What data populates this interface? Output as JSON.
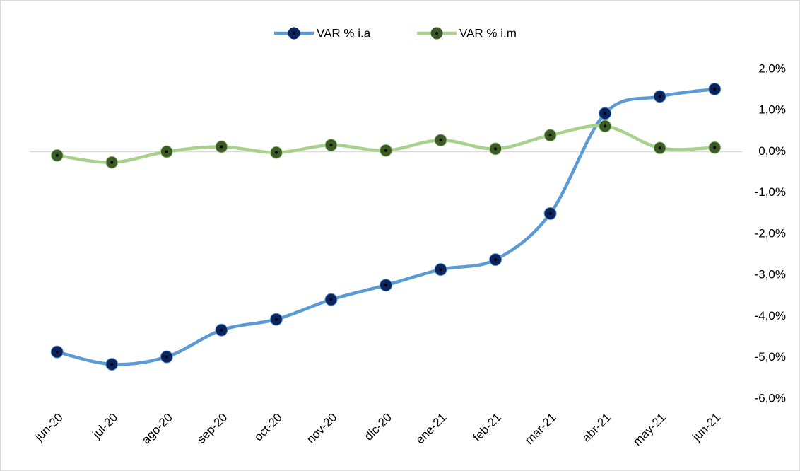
{
  "chart_data": {
    "type": "line",
    "categories": [
      "jun-20",
      "jul-20",
      "ago-20",
      "sep-20",
      "oct-20",
      "nov-20",
      "dic-20",
      "ene-21",
      "feb-21",
      "mar-21",
      "abr-21",
      "may-21",
      "jun-21"
    ],
    "series": [
      {
        "name": "VAR % i.a",
        "color": "#5b9bd5",
        "marker_color": "#0b2460",
        "values": [
          -4.86,
          -5.16,
          -4.98,
          -4.33,
          -4.07,
          -3.59,
          -3.24,
          -2.86,
          -2.62,
          -1.5,
          0.93,
          1.34,
          1.52
        ]
      },
      {
        "name": "VAR % i.m",
        "color": "#a9d18e",
        "marker_color": "#3b5a26",
        "values": [
          -0.09,
          -0.26,
          0.0,
          0.12,
          -0.02,
          0.16,
          0.03,
          0.28,
          0.07,
          0.4,
          0.62,
          0.09,
          0.1
        ]
      }
    ],
    "ylim": [
      -6,
      2
    ],
    "yticks": [
      {
        "value": 2,
        "label": "2,0%"
      },
      {
        "value": 1,
        "label": "1,0%"
      },
      {
        "value": 0,
        "label": "0,0%"
      },
      {
        "value": -1,
        "label": "-1,0%"
      },
      {
        "value": -2,
        "label": "-2,0%"
      },
      {
        "value": -3,
        "label": "-3,0%"
      },
      {
        "value": -4,
        "label": "-4,0%"
      },
      {
        "value": -5,
        "label": "-5,0%"
      },
      {
        "value": -6,
        "label": "-6,0%"
      }
    ],
    "y_axis_side": "right",
    "smooth": true,
    "legend": "top"
  }
}
